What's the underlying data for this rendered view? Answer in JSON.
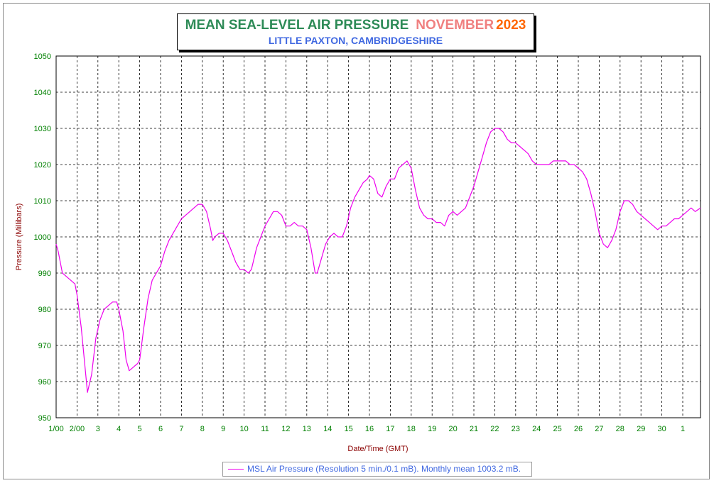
{
  "title": {
    "main": "MEAN SEA-LEVEL AIR PRESSURE",
    "month": "NOVEMBER",
    "year": "2023",
    "subtitle": "LITTLE PAXTON, CAMBRIDGESHIRE"
  },
  "legend": {
    "text": "MSL Air Pressure (Resolution 5 min./0.1 mB). Monthly mean 1003.2 mB."
  },
  "colors": {
    "line": "#ee00ee",
    "tick_labels": "#008000",
    "axis_titles": "#8b0000",
    "title_main": "#2e8b57",
    "title_month": "#f08080",
    "title_year": "#ff6600",
    "subtitle": "#4169e1"
  },
  "chart_data": {
    "type": "line",
    "xlabel": "Date/Time (GMT)",
    "ylabel": "Pressure (Millibars)",
    "ylim": [
      950,
      1050
    ],
    "xlim": [
      1,
      31.85
    ],
    "grid": true,
    "legend_position": "bottom-center",
    "x_tick_labels": [
      "1/00",
      "2/00",
      "3",
      "4",
      "5",
      "6",
      "7",
      "8",
      "9",
      "10",
      "11",
      "12",
      "13",
      "14",
      "15",
      "16",
      "17",
      "18",
      "19",
      "20",
      "21",
      "22",
      "23",
      "24",
      "25",
      "26",
      "27",
      "28",
      "29",
      "30",
      "1"
    ],
    "y_tick_labels": [
      "950",
      "960",
      "970",
      "980",
      "990",
      "1000",
      "1010",
      "1020",
      "1030",
      "1040",
      "1050"
    ],
    "series": [
      {
        "name": "MSL Air Pressure (Resolution 5 min./0.1 mB). Monthly mean 1003.2 mB.",
        "x": [
          1.0,
          1.1,
          1.3,
          1.5,
          1.7,
          1.9,
          2.0,
          2.2,
          2.35,
          2.5,
          2.7,
          2.9,
          3.1,
          3.3,
          3.5,
          3.7,
          3.9,
          4.0,
          4.2,
          4.35,
          4.5,
          4.7,
          4.9,
          5.0,
          5.2,
          5.4,
          5.6,
          5.8,
          6.0,
          6.2,
          6.4,
          6.6,
          6.8,
          7.0,
          7.2,
          7.4,
          7.6,
          7.8,
          8.0,
          8.2,
          8.4,
          8.5,
          8.6,
          8.8,
          9.0,
          9.2,
          9.4,
          9.6,
          9.8,
          10.0,
          10.2,
          10.35,
          10.6,
          10.8,
          11.0,
          11.2,
          11.4,
          11.6,
          11.8,
          12.0,
          12.2,
          12.4,
          12.6,
          12.8,
          13.0,
          13.2,
          13.4,
          13.5,
          13.7,
          13.9,
          14.1,
          14.3,
          14.5,
          14.7,
          14.9,
          15.1,
          15.3,
          15.5,
          15.7,
          15.9,
          16.0,
          16.2,
          16.4,
          16.6,
          16.8,
          17.0,
          17.2,
          17.4,
          17.6,
          17.8,
          18.0,
          18.2,
          18.4,
          18.6,
          18.8,
          19.0,
          19.2,
          19.4,
          19.6,
          19.8,
          20.0,
          20.2,
          20.4,
          20.6,
          20.8,
          21.0,
          21.2,
          21.4,
          21.6,
          21.8,
          22.0,
          22.2,
          22.4,
          22.6,
          22.8,
          23.0,
          23.2,
          23.4,
          23.6,
          23.8,
          24.0,
          24.2,
          24.4,
          24.6,
          24.8,
          25.0,
          25.2,
          25.4,
          25.6,
          25.8,
          26.0,
          26.2,
          26.4,
          26.6,
          26.8,
          27.0,
          27.2,
          27.4,
          27.6,
          27.8,
          28.0,
          28.2,
          28.4,
          28.6,
          28.8,
          29.0,
          29.2,
          29.4,
          29.6,
          29.8,
          30.0,
          30.2,
          30.4,
          30.6,
          30.8,
          31.0,
          31.2,
          31.4,
          31.6,
          31.85
        ],
        "values": [
          998,
          996,
          990,
          989,
          988,
          987,
          984,
          975,
          966,
          957,
          962,
          972,
          977,
          980,
          981,
          982,
          982,
          980,
          974,
          966,
          963,
          964,
          965,
          966,
          975,
          983,
          988,
          990,
          992,
          996,
          999,
          1001,
          1003,
          1005,
          1006,
          1007,
          1008,
          1009,
          1009,
          1007,
          1002,
          999,
          1000,
          1001,
          1001,
          999,
          996,
          993,
          991,
          991,
          990,
          991,
          997,
          1000,
          1003,
          1005,
          1007,
          1007,
          1006,
          1003,
          1003,
          1004,
          1003,
          1003,
          1002,
          997,
          990,
          990,
          994,
          998,
          1000,
          1001,
          1000,
          1000,
          1003,
          1008,
          1011,
          1013,
          1015,
          1016,
          1017,
          1016,
          1012,
          1011,
          1014,
          1016,
          1016,
          1019,
          1020,
          1021,
          1019,
          1013,
          1008,
          1006,
          1005,
          1005,
          1004,
          1004,
          1003,
          1006,
          1007,
          1006,
          1007,
          1008,
          1011,
          1014,
          1018,
          1022,
          1026,
          1029,
          1030,
          1030,
          1029,
          1027,
          1026,
          1026,
          1025,
          1024,
          1023,
          1021,
          1020,
          1020,
          1020,
          1020,
          1021,
          1021,
          1021,
          1021,
          1020,
          1020,
          1019,
          1018,
          1016,
          1012,
          1007,
          1001,
          998,
          997,
          999,
          1002,
          1007,
          1010,
          1010,
          1009,
          1007,
          1006,
          1005,
          1004,
          1003,
          1002,
          1003,
          1003,
          1004,
          1005,
          1005,
          1006,
          1007,
          1008,
          1007,
          1008
        ]
      }
    ]
  }
}
